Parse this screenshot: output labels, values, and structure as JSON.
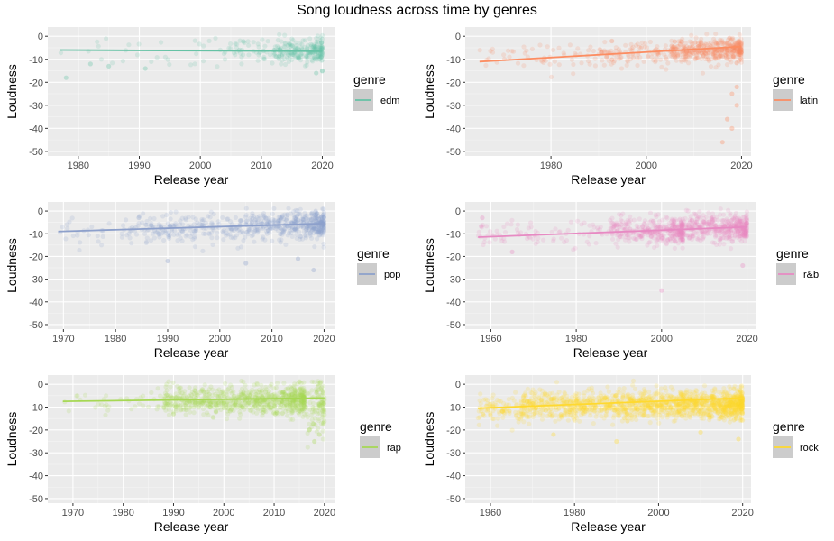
{
  "title": "Song loudness across time by genres",
  "chart_data": [
    {
      "type": "scatter",
      "genre": "edm",
      "color": "#66c2a5",
      "xlabel": "Release year",
      "ylabel": "Loudness",
      "legend_title": "genre",
      "xlim": [
        1975,
        2022
      ],
      "ylim": [
        -52,
        4
      ],
      "x_ticks": [
        1980,
        1990,
        2000,
        2010,
        2020
      ],
      "y_ticks": [
        0,
        -10,
        -20,
        -30,
        -40,
        -50
      ],
      "trend": [
        [
          1977,
          -6
        ],
        [
          2020,
          -6.5
        ]
      ],
      "density": [
        {
          "from": 1977,
          "to": 2004,
          "weight": 0.04,
          "center": -6,
          "spread": 4
        },
        {
          "from": 2004,
          "to": 2012,
          "weight": 0.2,
          "center": -6,
          "spread": 2.5
        },
        {
          "from": 2012,
          "to": 2020,
          "weight": 1.0,
          "center": -6.5,
          "spread": 2.5
        }
      ],
      "outliers": [
        [
          1978,
          -18
        ],
        [
          1982,
          -12
        ],
        [
          1985,
          -13
        ],
        [
          1991,
          -14
        ],
        [
          2019,
          -16
        ],
        [
          2020,
          -15
        ]
      ]
    },
    {
      "type": "scatter",
      "genre": "latin",
      "color": "#fc8d62",
      "xlabel": "Release year",
      "ylabel": "Loudness",
      "legend_title": "genre",
      "xlim": [
        1962,
        2022
      ],
      "ylim": [
        -52,
        4
      ],
      "x_ticks": [
        1980,
        2000,
        2020
      ],
      "y_ticks": [
        0,
        -10,
        -20,
        -30,
        -40,
        -50
      ],
      "trend": [
        [
          1965,
          -11
        ],
        [
          2020,
          -4.5
        ]
      ],
      "density": [
        {
          "from": 1965,
          "to": 1990,
          "weight": 0.08,
          "center": -9,
          "spread": 3
        },
        {
          "from": 1990,
          "to": 2005,
          "weight": 0.25,
          "center": -8,
          "spread": 2.5
        },
        {
          "from": 2005,
          "to": 2020,
          "weight": 1.0,
          "center": -6,
          "spread": 2.5
        }
      ],
      "outliers": [
        [
          2017,
          -36
        ],
        [
          2018,
          -40
        ],
        [
          2016,
          -46
        ],
        [
          2019,
          -30
        ],
        [
          2018,
          -25
        ],
        [
          2019,
          -22
        ]
      ]
    },
    {
      "type": "scatter",
      "genre": "pop",
      "color": "#8da0cb",
      "xlabel": "Release year",
      "ylabel": "Loudness",
      "legend_title": "genre",
      "xlim": [
        1967,
        2022
      ],
      "ylim": [
        -52,
        4
      ],
      "x_ticks": [
        1970,
        1980,
        1990,
        2000,
        2010,
        2020
      ],
      "y_ticks": [
        0,
        -10,
        -20,
        -30,
        -40,
        -50
      ],
      "trend": [
        [
          1969,
          -9
        ],
        [
          2020,
          -5.5
        ]
      ],
      "density": [
        {
          "from": 1969,
          "to": 1985,
          "weight": 0.1,
          "center": -8.5,
          "spread": 3
        },
        {
          "from": 1985,
          "to": 2005,
          "weight": 0.35,
          "center": -7.5,
          "spread": 3
        },
        {
          "from": 2005,
          "to": 2020,
          "weight": 1.0,
          "center": -6,
          "spread": 3
        }
      ],
      "outliers": [
        [
          2018,
          -26
        ],
        [
          2005,
          -23
        ],
        [
          2015,
          -21
        ],
        [
          1990,
          -22
        ]
      ]
    },
    {
      "type": "scatter",
      "genre": "r&b",
      "color": "#e78ac3",
      "xlabel": "Release year",
      "ylabel": "Loudness",
      "legend_title": "genre",
      "xlim": [
        1954,
        2022
      ],
      "ylim": [
        -52,
        4
      ],
      "x_ticks": [
        1960,
        1980,
        2000,
        2020
      ],
      "y_ticks": [
        0,
        -10,
        -20,
        -30,
        -40,
        -50
      ],
      "trend": [
        [
          1957,
          -11.5
        ],
        [
          2020,
          -7
        ]
      ],
      "density": [
        {
          "from": 1957,
          "to": 1988,
          "weight": 0.1,
          "center": -10,
          "spread": 3
        },
        {
          "from": 1988,
          "to": 2005,
          "weight": 0.8,
          "center": -9,
          "spread": 3
        },
        {
          "from": 2005,
          "to": 2020,
          "weight": 1.0,
          "center": -7.5,
          "spread": 3
        }
      ],
      "outliers": [
        [
          2000,
          -35
        ],
        [
          1958,
          -3
        ],
        [
          1965,
          -18
        ],
        [
          2019,
          -24
        ]
      ]
    },
    {
      "type": "scatter",
      "genre": "rap",
      "color": "#a6d854",
      "xlabel": "Release year",
      "ylabel": "Loudness",
      "legend_title": "genre",
      "xlim": [
        1965,
        2022
      ],
      "ylim": [
        -52,
        4
      ],
      "x_ticks": [
        1970,
        1980,
        1990,
        2000,
        2010,
        2020
      ],
      "y_ticks": [
        0,
        -10,
        -20,
        -30,
        -40,
        -50
      ],
      "trend": [
        [
          1968,
          -7.5
        ],
        [
          2020,
          -6
        ]
      ],
      "density": [
        {
          "from": 1968,
          "to": 1988,
          "weight": 0.06,
          "center": -7,
          "spread": 3
        },
        {
          "from": 1988,
          "to": 2016,
          "weight": 1.0,
          "center": -7,
          "spread": 3
        },
        {
          "from": 2016,
          "to": 2020,
          "weight": 1.0,
          "center": -9,
          "spread": 6
        }
      ],
      "outliers": [
        [
          2018,
          -25
        ],
        [
          2019,
          -22
        ],
        [
          2017,
          -20
        ],
        [
          1990,
          -13
        ]
      ]
    },
    {
      "type": "scatter",
      "genre": "rock",
      "color": "#ffd92f",
      "xlabel": "Release year",
      "ylabel": "Loudness",
      "legend_title": "genre",
      "xlim": [
        1954,
        2022
      ],
      "ylim": [
        -52,
        4
      ],
      "x_ticks": [
        1960,
        1980,
        2000,
        2020
      ],
      "y_ticks": [
        0,
        -10,
        -20,
        -30,
        -40,
        -50
      ],
      "trend": [
        [
          1957,
          -10.5
        ],
        [
          2020,
          -6
        ]
      ],
      "density": [
        {
          "from": 1957,
          "to": 1967,
          "weight": 0.3,
          "center": -11,
          "spread": 3
        },
        {
          "from": 1967,
          "to": 2020,
          "weight": 1.0,
          "center": -9,
          "spread": 3
        }
      ],
      "outliers": [
        [
          1975,
          -22
        ],
        [
          1990,
          -25
        ],
        [
          2010,
          -21
        ],
        [
          2019,
          -24
        ]
      ]
    }
  ]
}
